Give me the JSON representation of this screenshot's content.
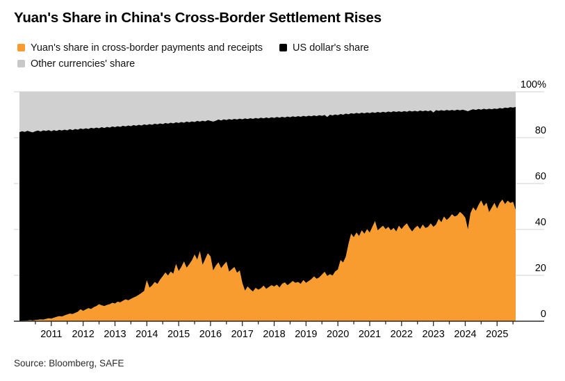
{
  "title": "Yuan's Share in China's Cross-Border Settlement Rises",
  "source": "Source: Bloomberg, SAFE",
  "legend": [
    {
      "label": "Yuan's share in cross-border payments and receipts",
      "color": "#F89C30",
      "swatch": "yuan-swatch"
    },
    {
      "label": "US dollar's share",
      "color": "#000000",
      "swatch": "usd-swatch"
    },
    {
      "label": "Other currencies' share",
      "color": "#C8C8C8",
      "swatch": "other-swatch"
    }
  ],
  "colors": {
    "yuan_area": "#F89C30",
    "usd_area": "#000000",
    "other_area": "#D0D0D0",
    "gridline": "#D9D9D9",
    "axis_baseline": "#2A2A2A",
    "tick": "#2A2A2A",
    "background": "#FFFFFF"
  },
  "chart_data": {
    "type": "area",
    "stacked": true,
    "title": "Yuan's Share in China's Cross-Border Settlement Rises",
    "x_interval": "monthly",
    "x_start": "2010-01",
    "x_end": "2025-08",
    "ylim": [
      0,
      100
    ],
    "y_unit": "%",
    "grid": "horizontal, visible in margins",
    "legend_position": "top-left",
    "y_ticks": [
      [
        0,
        "0"
      ],
      [
        20,
        "20"
      ],
      [
        40,
        "40"
      ],
      [
        60,
        "60"
      ],
      [
        80,
        "80"
      ],
      [
        100,
        "100%"
      ]
    ],
    "x_year_labels": [
      "2011",
      "2012",
      "2013",
      "2014",
      "2015",
      "2016",
      "2017",
      "2018",
      "2019",
      "2020",
      "2021",
      "2022",
      "2023",
      "2024",
      "2025"
    ],
    "note": "stack_tops.yuan = yuan share (top of orange band); stack_tops.yuan_plus_usd = top of black band (US dollar share = yuan_plus_usd - yuan); other currencies fill up to 100.",
    "stack_tops": {
      "yuan": [
        0.1,
        0.2,
        0.2,
        0.3,
        0.4,
        0.3,
        0.5,
        0.6,
        0.8,
        0.7,
        1.0,
        1.3,
        1.1,
        1.5,
        1.9,
        2.2,
        2.0,
        2.5,
        2.9,
        3.3,
        3.1,
        3.6,
        4.1,
        5.2,
        4.5,
        5.1,
        5.7,
        5.3,
        6.1,
        6.6,
        7.4,
        6.9,
        6.6,
        7.1,
        7.4,
        8.0,
        7.7,
        8.5,
        8.2,
        8.9,
        9.5,
        9.1,
        9.7,
        10.3,
        10.8,
        11.5,
        12.3,
        13.2,
        17.8,
        14.6,
        15.6,
        17.1,
        16.2,
        18.1,
        19.6,
        21.2,
        19.9,
        21.6,
        20.7,
        24.9,
        21.8,
        23.6,
        26.0,
        23.3,
        24.8,
        26.5,
        29.0,
        26.8,
        30.4,
        24.5,
        27.0,
        29.6,
        28.2,
        22.1,
        24.2,
        25.6,
        23.1,
        24.6,
        25.9,
        21.6,
        22.6,
        23.6,
        21.1,
        22.1,
        16.6,
        13.3,
        15.1,
        13.9,
        12.9,
        14.5,
        13.7,
        14.3,
        15.5,
        14.1,
        14.9,
        15.7,
        15.1,
        15.9,
        14.7,
        16.3,
        16.9,
        15.7,
        16.5,
        17.5,
        16.7,
        17.1,
        16.3,
        17.9,
        16.7,
        17.5,
        18.3,
        19.5,
        18.5,
        19.1,
        20.3,
        21.5,
        19.7,
        20.5,
        19.9,
        21.7,
        22.5,
        26.6,
        25.6,
        28.1,
        33.6,
        38.1,
        36.6,
        38.6,
        37.1,
        39.6,
        38.1,
        40.1,
        38.6,
        41.1,
        43.6,
        39.6,
        40.6,
        41.6,
        40.1,
        41.1,
        39.6,
        40.6,
        39.1,
        41.6,
        40.1,
        41.6,
        42.6,
        40.6,
        39.1,
        40.6,
        41.6,
        40.1,
        42.1,
        40.6,
        41.1,
        42.6,
        41.1,
        42.1,
        44.6,
        43.1,
        45.6,
        44.1,
        45.1,
        46.6,
        45.6,
        46.1,
        47.6,
        46.6,
        45.1,
        40.0,
        47.1,
        49.6,
        48.1,
        50.6,
        52.6,
        50.1,
        51.6,
        47.5,
        49.5,
        51.5,
        49.0,
        51.5,
        53.0,
        51.0,
        52.5,
        51.5,
        52.0,
        48.5
      ],
      "yuan_plus_usd": [
        82.4,
        82.8,
        82.5,
        83.0,
        82.6,
        82.3,
        82.8,
        83.1,
        82.7,
        83.2,
        82.9,
        83.3,
        82.8,
        83.3,
        82.9,
        83.4,
        83.1,
        83.5,
        83.2,
        83.7,
        83.3,
        83.8,
        83.5,
        84.0,
        83.7,
        84.1,
        83.8,
        84.3,
        84.0,
        84.4,
        84.1,
        84.6,
        84.2,
        84.7,
        84.4,
        84.9,
        84.6,
        85.0,
        84.7,
        85.2,
        84.9,
        85.3,
        85.0,
        85.5,
        85.2,
        85.6,
        85.3,
        85.8,
        85.5,
        85.9,
        85.6,
        86.1,
        85.8,
        86.2,
        85.9,
        86.4,
        86.1,
        86.5,
        86.2,
        86.7,
        86.4,
        86.8,
        86.5,
        87.0,
        86.7,
        87.1,
        86.8,
        87.3,
        87.0,
        87.4,
        87.1,
        87.6,
        87.3,
        87.0,
        87.4,
        87.9,
        87.5,
        88.0,
        87.7,
        88.1,
        87.8,
        88.2,
        87.9,
        88.3,
        88.0,
        88.4,
        88.1,
        88.5,
        88.2,
        88.6,
        88.3,
        88.7,
        88.4,
        88.8,
        88.5,
        88.9,
        88.6,
        89.0,
        88.7,
        89.1,
        88.8,
        89.2,
        88.9,
        89.3,
        89.0,
        89.4,
        89.1,
        89.5,
        89.2,
        89.6,
        89.3,
        89.7,
        89.4,
        89.8,
        89.5,
        89.9,
        89.0,
        90.0,
        89.7,
        90.1,
        89.8,
        90.3,
        90.0,
        90.5,
        90.2,
        90.7,
        90.4,
        90.8,
        90.5,
        90.9,
        90.6,
        91.0,
        90.7,
        91.1,
        90.8,
        91.2,
        90.9,
        91.3,
        91.0,
        91.4,
        91.1,
        91.5,
        91.2,
        91.5,
        91.2,
        91.6,
        91.3,
        91.7,
        91.4,
        91.7,
        91.4,
        91.8,
        91.5,
        91.8,
        91.5,
        91.9,
        91.0,
        92.0,
        91.7,
        92.0,
        91.7,
        92.1,
        91.8,
        92.1,
        91.8,
        92.2,
        91.9,
        92.2,
        91.9,
        91.5,
        92.0,
        92.4,
        92.1,
        92.5,
        92.2,
        92.6,
        92.3,
        92.6,
        92.4,
        92.7,
        92.5,
        92.9,
        92.7,
        93.1,
        92.9,
        93.3,
        93.1,
        93.4
      ]
    }
  }
}
